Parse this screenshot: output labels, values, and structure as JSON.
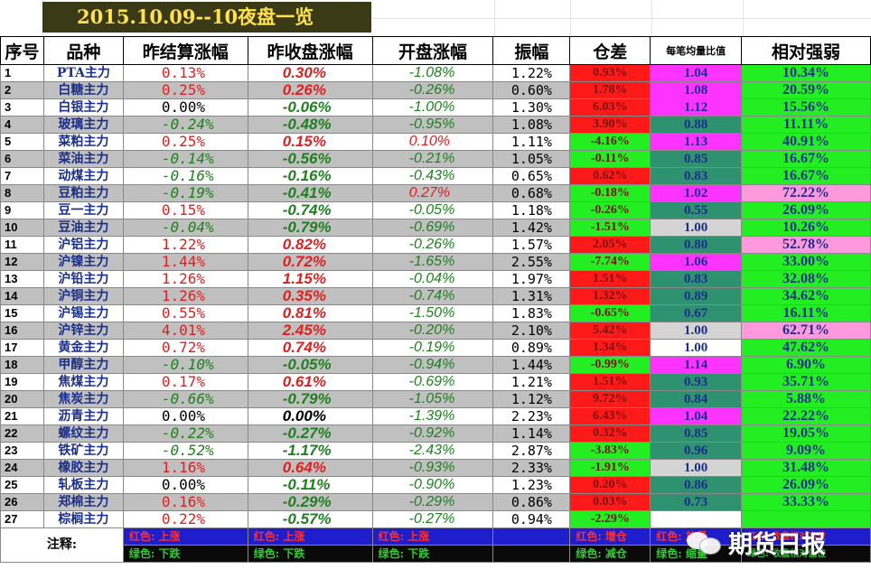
{
  "title": "2015.10.09--10夜盘一览",
  "headers": [
    "序号",
    "品种",
    "昨结算涨幅",
    "昨收盘涨幅",
    "开盘涨幅",
    "振幅",
    "仓差",
    "每笔均量比值",
    "相对强弱"
  ],
  "colors": {
    "red": "#ff1a1a",
    "green": "#22ee22",
    "magenta": "#ff33ff",
    "teal": "#2e9270",
    "pink": "#ff99dd",
    "text_red": "#e02020",
    "text_green": "#208020"
  },
  "rows": [
    {
      "seq": "1",
      "name": "PTA主力",
      "c2": "0.13%",
      "c2c": "up",
      "c3": "0.30%",
      "c3c": "up",
      "c4": "-1.08%",
      "c4c": "dn",
      "amp": "1.22%",
      "oi": "0.93%",
      "oic": "red",
      "avg": "1.04",
      "avgc": "mag",
      "rs": "10.34%",
      "rsc": "green"
    },
    {
      "seq": "2",
      "name": "白糖主力",
      "c2": "0.25%",
      "c2c": "up",
      "c3": "0.26%",
      "c3c": "up",
      "c4": "-0.26%",
      "c4c": "dn",
      "amp": "0.60%",
      "oi": "1.78%",
      "oic": "red",
      "avg": "1.08",
      "avgc": "mag",
      "rs": "20.59%",
      "rsc": "green"
    },
    {
      "seq": "3",
      "name": "白银主力",
      "c2": "0.00%",
      "c2c": "nz",
      "c3": "-0.06%",
      "c3c": "dn",
      "c4": "-1.00%",
      "c4c": "dn",
      "amp": "1.30%",
      "oi": "6.03%",
      "oic": "red",
      "avg": "1.12",
      "avgc": "mag",
      "rs": "15.56%",
      "rsc": "green"
    },
    {
      "seq": "4",
      "name": "玻璃主力",
      "c2": "-0.24%",
      "c2c": "dn",
      "c3": "-0.48%",
      "c3c": "dn",
      "c4": "-0.95%",
      "c4c": "dn",
      "amp": "1.08%",
      "oi": "3.90%",
      "oic": "red",
      "avg": "0.88",
      "avgc": "teal",
      "rs": "11.11%",
      "rsc": "green"
    },
    {
      "seq": "5",
      "name": "菜粕主力",
      "c2": "0.25%",
      "c2c": "up",
      "c3": "0.15%",
      "c3c": "up",
      "c4": "0.10%",
      "c4c": "up",
      "amp": "1.11%",
      "oi": "-4.16%",
      "oic": "green",
      "avg": "1.13",
      "avgc": "mag",
      "rs": "40.91%",
      "rsc": "green"
    },
    {
      "seq": "6",
      "name": "菜油主力",
      "c2": "-0.14%",
      "c2c": "dn",
      "c3": "-0.56%",
      "c3c": "dn",
      "c4": "-0.21%",
      "c4c": "dn",
      "amp": "1.05%",
      "oi": "-0.11%",
      "oic": "green",
      "avg": "0.85",
      "avgc": "teal",
      "rs": "16.67%",
      "rsc": "green"
    },
    {
      "seq": "7",
      "name": "动煤主力",
      "c2": "-0.16%",
      "c2c": "dn",
      "c3": "-0.16%",
      "c3c": "dn",
      "c4": "-0.43%",
      "c4c": "dn",
      "amp": "0.65%",
      "oi": "0.62%",
      "oic": "red",
      "avg": "0.83",
      "avgc": "teal",
      "rs": "16.67%",
      "rsc": "green"
    },
    {
      "seq": "8",
      "name": "豆粕主力",
      "c2": "-0.19%",
      "c2c": "dn",
      "c3": "-0.41%",
      "c3c": "dn",
      "c4": "0.27%",
      "c4c": "up",
      "amp": "0.68%",
      "oi": "-0.18%",
      "oic": "green",
      "avg": "1.02",
      "avgc": "mag",
      "rs": "72.22%",
      "rsc": "pink"
    },
    {
      "seq": "9",
      "name": "豆一主力",
      "c2": "0.15%",
      "c2c": "up",
      "c3": "-0.74%",
      "c3c": "dn",
      "c4": "-0.05%",
      "c4c": "dn",
      "amp": "1.18%",
      "oi": "-0.26%",
      "oic": "green",
      "avg": "0.55",
      "avgc": "teal",
      "rs": "26.09%",
      "rsc": "green"
    },
    {
      "seq": "10",
      "name": "豆油主力",
      "c2": "-0.04%",
      "c2c": "dn",
      "c3": "-0.79%",
      "c3c": "dn",
      "c4": "-0.69%",
      "c4c": "dn",
      "amp": "1.42%",
      "oi": "-1.51%",
      "oic": "green",
      "avg": "1.00",
      "avgc": "lgray",
      "rs": "10.26%",
      "rsc": "green"
    },
    {
      "seq": "11",
      "name": "沪铝主力",
      "c2": "1.22%",
      "c2c": "up",
      "c3": "0.82%",
      "c3c": "up",
      "c4": "-0.26%",
      "c4c": "dn",
      "amp": "1.57%",
      "oi": "2.05%",
      "oic": "red",
      "avg": "0.80",
      "avgc": "teal",
      "rs": "52.78%",
      "rsc": "pink"
    },
    {
      "seq": "12",
      "name": "沪镍主力",
      "c2": "1.44%",
      "c2c": "up",
      "c3": "0.72%",
      "c3c": "up",
      "c4": "-1.65%",
      "c4c": "dn",
      "amp": "2.55%",
      "oi": "-7.74%",
      "oic": "green",
      "avg": "1.06",
      "avgc": "mag",
      "rs": "33.00%",
      "rsc": "green"
    },
    {
      "seq": "13",
      "name": "沪铅主力",
      "c2": "1.26%",
      "c2c": "up",
      "c3": "1.15%",
      "c3c": "up",
      "c4": "-0.04%",
      "c4c": "dn",
      "amp": "1.97%",
      "oi": "1.51%",
      "oic": "red",
      "avg": "0.83",
      "avgc": "teal",
      "rs": "32.08%",
      "rsc": "green"
    },
    {
      "seq": "14",
      "name": "沪铜主力",
      "c2": "1.26%",
      "c2c": "up",
      "c3": "0.35%",
      "c3c": "up",
      "c4": "-0.74%",
      "c4c": "dn",
      "amp": "1.31%",
      "oi": "1.32%",
      "oic": "red",
      "avg": "0.89",
      "avgc": "teal",
      "rs": "34.62%",
      "rsc": "green"
    },
    {
      "seq": "15",
      "name": "沪锡主力",
      "c2": "0.55%",
      "c2c": "up",
      "c3": "0.81%",
      "c3c": "up",
      "c4": "-1.50%",
      "c4c": "dn",
      "amp": "1.83%",
      "oi": "-0.65%",
      "oic": "green",
      "avg": "0.67",
      "avgc": "teal",
      "rs": "16.11%",
      "rsc": "green"
    },
    {
      "seq": "16",
      "name": "沪锌主力",
      "c2": "4.01%",
      "c2c": "up",
      "c3": "2.45%",
      "c3c": "up",
      "c4": "-0.20%",
      "c4c": "dn",
      "amp": "2.10%",
      "oi": "5.42%",
      "oic": "red",
      "avg": "1.00",
      "avgc": "lgray",
      "rs": "62.71%",
      "rsc": "pink"
    },
    {
      "seq": "17",
      "name": "黄金主力",
      "c2": "0.72%",
      "c2c": "up",
      "c3": "0.74%",
      "c3c": "up",
      "c4": "-0.19%",
      "c4c": "dn",
      "amp": "0.89%",
      "oi": "1.34%",
      "oic": "red",
      "avg": "1.00",
      "avgc": "white",
      "rs": "47.62%",
      "rsc": "green"
    },
    {
      "seq": "18",
      "name": "甲醇主力",
      "c2": "-0.10%",
      "c2c": "dn",
      "c3": "-0.05%",
      "c3c": "dn",
      "c4": "-0.94%",
      "c4c": "dn",
      "amp": "1.44%",
      "oi": "-0.99%",
      "oic": "green",
      "avg": "1.14",
      "avgc": "mag",
      "rs": "6.90%",
      "rsc": "green"
    },
    {
      "seq": "19",
      "name": "焦煤主力",
      "c2": "0.17%",
      "c2c": "up",
      "c3": "0.61%",
      "c3c": "up",
      "c4": "-0.69%",
      "c4c": "dn",
      "amp": "1.21%",
      "oi": "1.51%",
      "oic": "red",
      "avg": "0.93",
      "avgc": "teal",
      "rs": "35.71%",
      "rsc": "green"
    },
    {
      "seq": "20",
      "name": "焦炭主力",
      "c2": "-0.66%",
      "c2c": "dn",
      "c3": "-0.79%",
      "c3c": "dn",
      "c4": "-1.05%",
      "c4c": "dn",
      "amp": "1.12%",
      "oi": "9.72%",
      "oic": "red",
      "avg": "0.84",
      "avgc": "teal",
      "rs": "5.88%",
      "rsc": "green"
    },
    {
      "seq": "21",
      "name": "沥青主力",
      "c2": "0.00%",
      "c2c": "nz",
      "c3": "0.00%",
      "c3c": "nz",
      "c4": "-1.39%",
      "c4c": "dn",
      "amp": "2.23%",
      "oi": "6.43%",
      "oic": "red",
      "avg": "1.04",
      "avgc": "mag",
      "rs": "22.22%",
      "rsc": "green"
    },
    {
      "seq": "22",
      "name": "螺纹主力",
      "c2": "-0.22%",
      "c2c": "dn",
      "c3": "-0.27%",
      "c3c": "dn",
      "c4": "-0.92%",
      "c4c": "dn",
      "amp": "1.14%",
      "oi": "0.32%",
      "oic": "red",
      "avg": "0.85",
      "avgc": "teal",
      "rs": "19.05%",
      "rsc": "green"
    },
    {
      "seq": "23",
      "name": "铁矿主力",
      "c2": "-0.52%",
      "c2c": "dn",
      "c3": "-1.17%",
      "c3c": "dn",
      "c4": "-2.43%",
      "c4c": "dn",
      "amp": "2.87%",
      "oi": "-3.83%",
      "oic": "green",
      "avg": "0.96",
      "avgc": "teal",
      "rs": "9.09%",
      "rsc": "green"
    },
    {
      "seq": "24",
      "name": "橡胶主力",
      "c2": "1.16%",
      "c2c": "up",
      "c3": "0.64%",
      "c3c": "up",
      "c4": "-0.93%",
      "c4c": "dn",
      "amp": "2.33%",
      "oi": "-1.91%",
      "oic": "green",
      "avg": "1.00",
      "avgc": "lgray",
      "rs": "31.48%",
      "rsc": "green"
    },
    {
      "seq": "25",
      "name": "轧板主力",
      "c2": "0.00%",
      "c2c": "nz",
      "c3": "-0.11%",
      "c3c": "dn",
      "c4": "-0.90%",
      "c4c": "dn",
      "amp": "1.23%",
      "oi": "0.20%",
      "oic": "red",
      "avg": "0.86",
      "avgc": "teal",
      "rs": "26.09%",
      "rsc": "green"
    },
    {
      "seq": "26",
      "name": "郑棉主力",
      "c2": "0.16%",
      "c2c": "up",
      "c3": "-0.29%",
      "c3c": "dn",
      "c4": "-0.29%",
      "c4c": "dn",
      "amp": "0.86%",
      "oi": "0.03%",
      "oic": "red",
      "avg": "0.73",
      "avgc": "teal",
      "rs": "33.33%",
      "rsc": "green"
    },
    {
      "seq": "27",
      "name": "棕榈主力",
      "c2": "0.22%",
      "c2c": "up",
      "c3": "-0.57%",
      "c3c": "dn",
      "c4": "-0.27%",
      "c4c": "dn",
      "amp": "0.94%",
      "oi": "-2.29%",
      "oic": "green",
      "avg": "",
      "avgc": "white",
      "rs": "",
      "rsc": "green"
    }
  ],
  "footer": {
    "label": "注释:",
    "up1": "红色: 上涨",
    "dn1": "绿色: 下跌",
    "up2": "红色: 上涨",
    "dn2": "绿色: 下跌",
    "up3": "红色: 上涨",
    "dn3": "绿色: 下跌",
    "oi_up": "红色: 增仓",
    "oi_dn": "绿色: 减仓",
    "avg_up": "红色: 放量",
    "avg_dn": "绿色: 缩量",
    "rs_up": "红色: 收盘相对高位",
    "rs_dn": "绿色: 收盘相对低位"
  },
  "watermark": {
    "text": "期货日报",
    "icon": "wechat-icon"
  }
}
